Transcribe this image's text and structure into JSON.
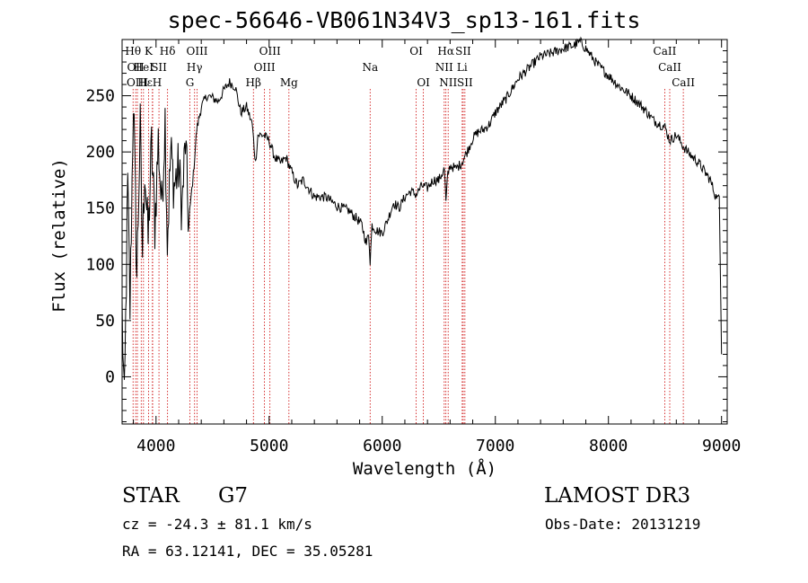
{
  "chart_data": {
    "type": "line",
    "title": "spec-56646-VB061N34V3_sp13-161.fits",
    "xlabel": "Wavelength (Å)",
    "ylabel": "Flux (relative)",
    "xlim": [
      3700,
      9050
    ],
    "ylim": [
      -42,
      300
    ],
    "xticks": [
      4000,
      5000,
      6000,
      7000,
      8000,
      9000
    ],
    "yticks": [
      0,
      50,
      100,
      150,
      200,
      250
    ],
    "series": [
      {
        "name": "flux",
        "x": [
          3700,
          3720,
          3750,
          3770,
          3800,
          3830,
          3860,
          3880,
          3900,
          3930,
          3960,
          3990,
          4020,
          4050,
          4080,
          4100,
          4130,
          4160,
          4200,
          4230,
          4260,
          4290,
          4310,
          4330,
          4360,
          4400,
          4450,
          4500,
          4550,
          4600,
          4650,
          4700,
          4750,
          4800,
          4850,
          4880,
          4900,
          4950,
          5000,
          5050,
          5100,
          5150,
          5200,
          5250,
          5300,
          5400,
          5500,
          5600,
          5700,
          5780,
          5820,
          5860,
          5880,
          5893,
          5910,
          5950,
          6000,
          6050,
          6100,
          6150,
          6200,
          6250,
          6300,
          6350,
          6400,
          6450,
          6500,
          6550,
          6563,
          6580,
          6600,
          6650,
          6700,
          6750,
          6800,
          6850,
          6900,
          6950,
          7000,
          7100,
          7200,
          7300,
          7400,
          7500,
          7600,
          7700,
          7750,
          7800,
          7850,
          7900,
          8000,
          8100,
          8200,
          8300,
          8400,
          8500,
          8542,
          8600,
          8662,
          8700,
          8800,
          8900,
          8950,
          8980,
          9000
        ],
        "y": [
          60,
          -30,
          170,
          60,
          250,
          90,
          220,
          110,
          190,
          120,
          205,
          135,
          210,
          150,
          230,
          120,
          200,
          170,
          185,
          150,
          210,
          130,
          160,
          180,
          220,
          240,
          250,
          248,
          245,
          255,
          262,
          258,
          235,
          240,
          225,
          190,
          215,
          215,
          210,
          195,
          190,
          195,
          182,
          170,
          175,
          160,
          160,
          152,
          148,
          140,
          135,
          118,
          128,
          103,
          135,
          130,
          128,
          140,
          155,
          150,
          160,
          165,
          162,
          170,
          168,
          175,
          175,
          185,
          155,
          180,
          188,
          185,
          190,
          200,
          212,
          218,
          220,
          225,
          235,
          248,
          265,
          275,
          285,
          288,
          292,
          295,
          298,
          292,
          285,
          278,
          268,
          258,
          250,
          240,
          228,
          222,
          210,
          215,
          205,
          200,
          190,
          175,
          160,
          160,
          20
        ]
      }
    ],
    "lines": [
      {
        "wave": 3797,
        "label": "Hθ",
        "row": 0,
        "anchor": "middle"
      },
      {
        "wave": 3820,
        "label": "OII",
        "row": 1,
        "anchor": "middle"
      },
      {
        "wave": 3835,
        "label": "OIII",
        "row": 2,
        "anchor": "middle"
      },
      {
        "wave": 3869,
        "label": "",
        "row": 0,
        "anchor": "middle"
      },
      {
        "wave": 3889,
        "label": "HeI",
        "row": 1,
        "anchor": "middle"
      },
      {
        "wave": 3934,
        "label": "K",
        "row": 0,
        "anchor": "middle"
      },
      {
        "wave": 3970,
        "label": "Hε",
        "row": 2,
        "anchor": "end"
      },
      {
        "wave": 3968,
        "label": "H",
        "row": 2,
        "anchor": "start"
      },
      {
        "wave": 4026,
        "label": "SII",
        "row": 1,
        "anchor": "middle"
      },
      {
        "wave": 4102,
        "label": "Hδ",
        "row": 0,
        "anchor": "middle"
      },
      {
        "wave": 4300,
        "label": "G",
        "row": 2,
        "anchor": "middle"
      },
      {
        "wave": 4341,
        "label": "Hγ",
        "row": 1,
        "anchor": "middle"
      },
      {
        "wave": 4363,
        "label": "OIII",
        "row": 0,
        "anchor": "middle"
      },
      {
        "wave": 4861,
        "label": "Hβ",
        "row": 2,
        "anchor": "middle"
      },
      {
        "wave": 4959,
        "label": "OIII",
        "row": 1,
        "anchor": "middle"
      },
      {
        "wave": 5007,
        "label": "OIII",
        "row": 0,
        "anchor": "middle"
      },
      {
        "wave": 5175,
        "label": "Mg",
        "row": 2,
        "anchor": "middle"
      },
      {
        "wave": 5893,
        "label": "Na",
        "row": 1,
        "anchor": "middle"
      },
      {
        "wave": 6300,
        "label": "OI",
        "row": 0,
        "anchor": "middle"
      },
      {
        "wave": 6364,
        "label": "OI",
        "row": 2,
        "anchor": "middle"
      },
      {
        "wave": 6548,
        "label": "NII",
        "row": 1,
        "anchor": "middle"
      },
      {
        "wave": 6563,
        "label": "Hα",
        "row": 0,
        "anchor": "middle"
      },
      {
        "wave": 6583,
        "label": "NII",
        "row": 2,
        "anchor": "middle"
      },
      {
        "wave": 6707,
        "label": "Li",
        "row": 1,
        "anchor": "middle"
      },
      {
        "wave": 6716,
        "label": "SII",
        "row": 0,
        "anchor": "middle"
      },
      {
        "wave": 6731,
        "label": "SII",
        "row": 2,
        "anchor": "middle"
      },
      {
        "wave": 8498,
        "label": "CaII",
        "row": 0,
        "anchor": "middle"
      },
      {
        "wave": 8542,
        "label": "CaII",
        "row": 1,
        "anchor": "middle"
      },
      {
        "wave": 8662,
        "label": "CaII",
        "row": 2,
        "anchor": "middle"
      }
    ]
  },
  "info": {
    "class": "STAR",
    "subclass": "G7",
    "cz": "cz = -24.3 ± 81.1 km/s",
    "radec": "RA =  63.12141, DEC =  35.05281",
    "survey": "LAMOST DR3",
    "obsdate": "Obs-Date: 20131219"
  },
  "colors": {
    "line": "#000000",
    "marker": "#cc0000"
  }
}
